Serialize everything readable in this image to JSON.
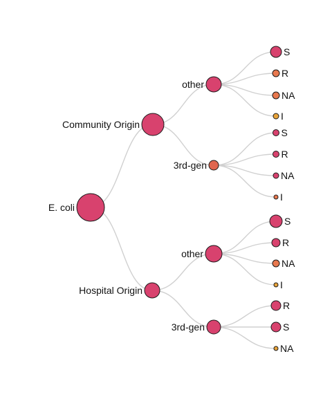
{
  "colors": {
    "high": "#d8426e",
    "mid": "#e0664f",
    "orange": "#e8784e",
    "low": "#e8a33a",
    "link": "#d0d0d0",
    "stroke": "#1a1a1a"
  },
  "tree": {
    "name": "E. coli",
    "id": "e-coli",
    "color": "high",
    "children": [
      {
        "name": "Community Origin",
        "id": "community-origin",
        "color": "high",
        "children": [
          {
            "name": "other",
            "id": "community-other",
            "color": "high",
            "children": [
              {
                "name": "S",
                "id": "community-other-s",
                "color": "high"
              },
              {
                "name": "R",
                "id": "community-other-r",
                "color": "orange"
              },
              {
                "name": "NA",
                "id": "community-other-na",
                "color": "orange"
              },
              {
                "name": "I",
                "id": "community-other-i",
                "color": "low"
              }
            ]
          },
          {
            "name": "3rd-gen",
            "id": "community-3rd-gen",
            "color": "mid",
            "children": [
              {
                "name": "S",
                "id": "community-3rdgen-s",
                "color": "high"
              },
              {
                "name": "R",
                "id": "community-3rdgen-r",
                "color": "high"
              },
              {
                "name": "NA",
                "id": "community-3rdgen-na",
                "color": "high"
              },
              {
                "name": "I",
                "id": "community-3rdgen-i",
                "color": "orange"
              }
            ]
          }
        ]
      },
      {
        "name": "Hospital Origin",
        "id": "hospital-origin",
        "color": "high",
        "children": [
          {
            "name": "other",
            "id": "hospital-other",
            "color": "high",
            "children": [
              {
                "name": "S",
                "id": "hospital-other-s",
                "color": "high"
              },
              {
                "name": "R",
                "id": "hospital-other-r",
                "color": "high"
              },
              {
                "name": "NA",
                "id": "hospital-other-na",
                "color": "orange"
              },
              {
                "name": "I",
                "id": "hospital-other-i",
                "color": "low"
              }
            ]
          },
          {
            "name": "3rd-gen",
            "id": "hospital-3rd-gen",
            "color": "high",
            "children": [
              {
                "name": "R",
                "id": "hospital-3rdgen-r",
                "color": "high"
              },
              {
                "name": "S",
                "id": "hospital-3rdgen-s",
                "color": "high"
              },
              {
                "name": "NA",
                "id": "hospital-3rdgen-na",
                "color": "low"
              }
            ]
          }
        ]
      }
    ]
  }
}
